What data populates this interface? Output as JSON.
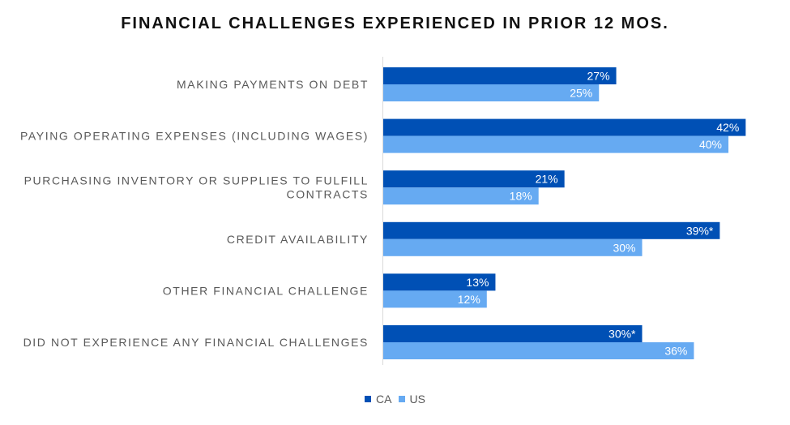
{
  "chart_data": {
    "type": "bar",
    "orientation": "horizontal",
    "title": "FINANCIAL CHALLENGES EXPERIENCED IN PRIOR 12 MOS.",
    "categories": [
      [
        "MAKING PAYMENTS ON DEBT"
      ],
      [
        "PAYING OPERATING EXPENSES (INCLUDING WAGES)"
      ],
      [
        "PURCHASING INVENTORY OR SUPPLIES TO FULFILL",
        "CONTRACTS"
      ],
      [
        "CREDIT AVAILABILITY"
      ],
      [
        "OTHER FINANCIAL CHALLENGE"
      ],
      [
        "DID NOT EXPERIENCE ANY FINANCIAL CHALLENGES"
      ]
    ],
    "series": [
      {
        "name": "CA",
        "color": "#0050b5",
        "values": [
          27,
          42,
          21,
          39,
          13,
          30
        ],
        "labels": [
          "27%",
          "42%",
          "21%",
          "39%*",
          "13%",
          "30%*"
        ]
      },
      {
        "name": "US",
        "color": "#66aaf2",
        "values": [
          25,
          40,
          18,
          30,
          12,
          36
        ],
        "labels": [
          "25%",
          "40%",
          "18%",
          "30%",
          "12%",
          "36%"
        ]
      }
    ],
    "xlim": [
      0,
      42
    ],
    "legend_position": "bottom",
    "grid": false
  }
}
